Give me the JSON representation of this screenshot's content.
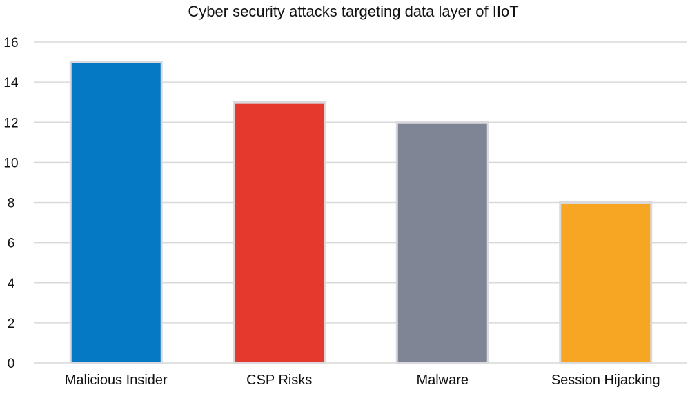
{
  "chart_data": {
    "type": "bar",
    "title": "Cyber security attacks targeting data layer of IIoT",
    "xlabel": "",
    "ylabel": "",
    "categories": [
      "Malicious Insider",
      "CSP Risks",
      "Malware",
      "Session Hijacking"
    ],
    "values": [
      15,
      13,
      12,
      8
    ],
    "colors": [
      "#0579c3",
      "#e4392c",
      "#7f8595",
      "#f6a623"
    ],
    "bar_border_color": "#d9d9de",
    "ylim": [
      0,
      16
    ],
    "yticks": [
      "0",
      "2",
      "4",
      "6",
      "8",
      "10",
      "12",
      "14",
      "16"
    ],
    "grid": true,
    "legend": "none"
  }
}
